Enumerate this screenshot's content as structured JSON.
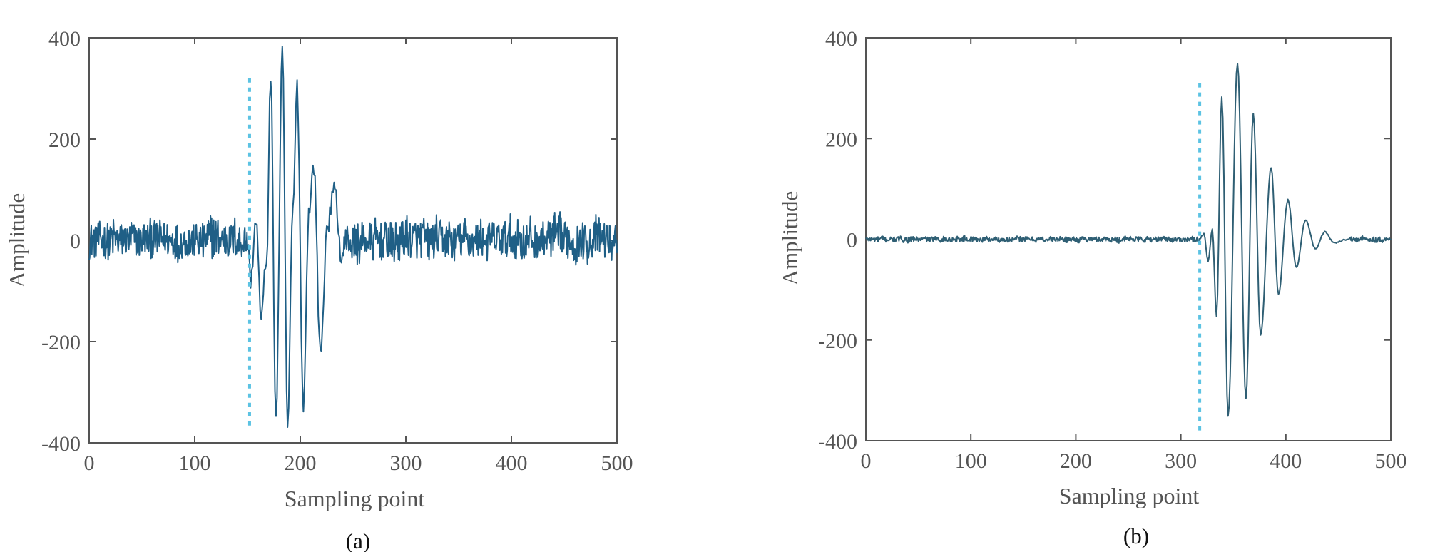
{
  "figure": {
    "panels": [
      {
        "caption": "(a)"
      },
      {
        "caption": "(b)"
      }
    ]
  },
  "chart_data": [
    {
      "type": "line",
      "panel": "(a)",
      "title": "",
      "xlabel": "Sampling point",
      "ylabel": "Amplitude",
      "xlim": [
        0,
        500
      ],
      "ylim": [
        -400,
        400
      ],
      "xticks": [
        0,
        100,
        200,
        300,
        400,
        500
      ],
      "yticks": [
        400,
        200,
        0,
        -200,
        -400
      ],
      "grid": false,
      "line_color": "#1f5f86",
      "onset_marker": {
        "x": 152,
        "y_range": [
          -370,
          320
        ],
        "style": "dotted",
        "color": "#5cc3e3"
      },
      "series": [
        {
          "description": "noisy signal, noise approx +/-50 before onset, burst between ~150 and ~240",
          "noise_amplitude": 45,
          "burst_points": [
            [
              150,
              0
            ],
            [
              153,
              -80
            ],
            [
              158,
              45
            ],
            [
              163,
              -160
            ],
            [
              168,
              -40
            ],
            [
              172,
              318
            ],
            [
              177,
              -350
            ],
            [
              183,
              362
            ],
            [
              188,
              -370
            ],
            [
              193,
              55
            ],
            [
              197,
              298
            ],
            [
              203,
              -330
            ],
            [
              208,
              60
            ],
            [
              213,
              145
            ],
            [
              219,
              -225
            ],
            [
              226,
              40
            ],
            [
              232,
              95
            ],
            [
              240,
              -40
            ]
          ]
        }
      ]
    },
    {
      "type": "line",
      "panel": "(b)",
      "title": "",
      "xlabel": "Sampling point",
      "ylabel": "Amplitude",
      "xlim": [
        0,
        500
      ],
      "ylim": [
        -400,
        400
      ],
      "xticks": [
        0,
        100,
        200,
        300,
        400,
        500
      ],
      "yticks": [
        400,
        200,
        0,
        -200,
        -400
      ],
      "grid": false,
      "line_color": "#2f5f74",
      "onset_marker": {
        "x": 318,
        "y_range": [
          -380,
          310
        ],
        "style": "dotted",
        "color": "#5cc3e3"
      },
      "series": [
        {
          "description": "low-noise signal, noise approx +/-6 before onset, decaying burst from ~320 to ~450",
          "noise_amplitude": 6,
          "burst_points": [
            [
              318,
              0
            ],
            [
              322,
              10
            ],
            [
              326,
              -45
            ],
            [
              330,
              20
            ],
            [
              334,
              -155
            ],
            [
              339,
              282
            ],
            [
              345,
              -352
            ],
            [
              354,
              350
            ],
            [
              362,
              -318
            ],
            [
              369,
              252
            ],
            [
              376,
              -190
            ],
            [
              386,
              142
            ],
            [
              393,
              -110
            ],
            [
              402,
              78
            ],
            [
              410,
              -55
            ],
            [
              419,
              38
            ],
            [
              428,
              -18
            ],
            [
              437,
              14
            ],
            [
              446,
              -6
            ],
            [
              460,
              0
            ]
          ]
        }
      ]
    }
  ]
}
